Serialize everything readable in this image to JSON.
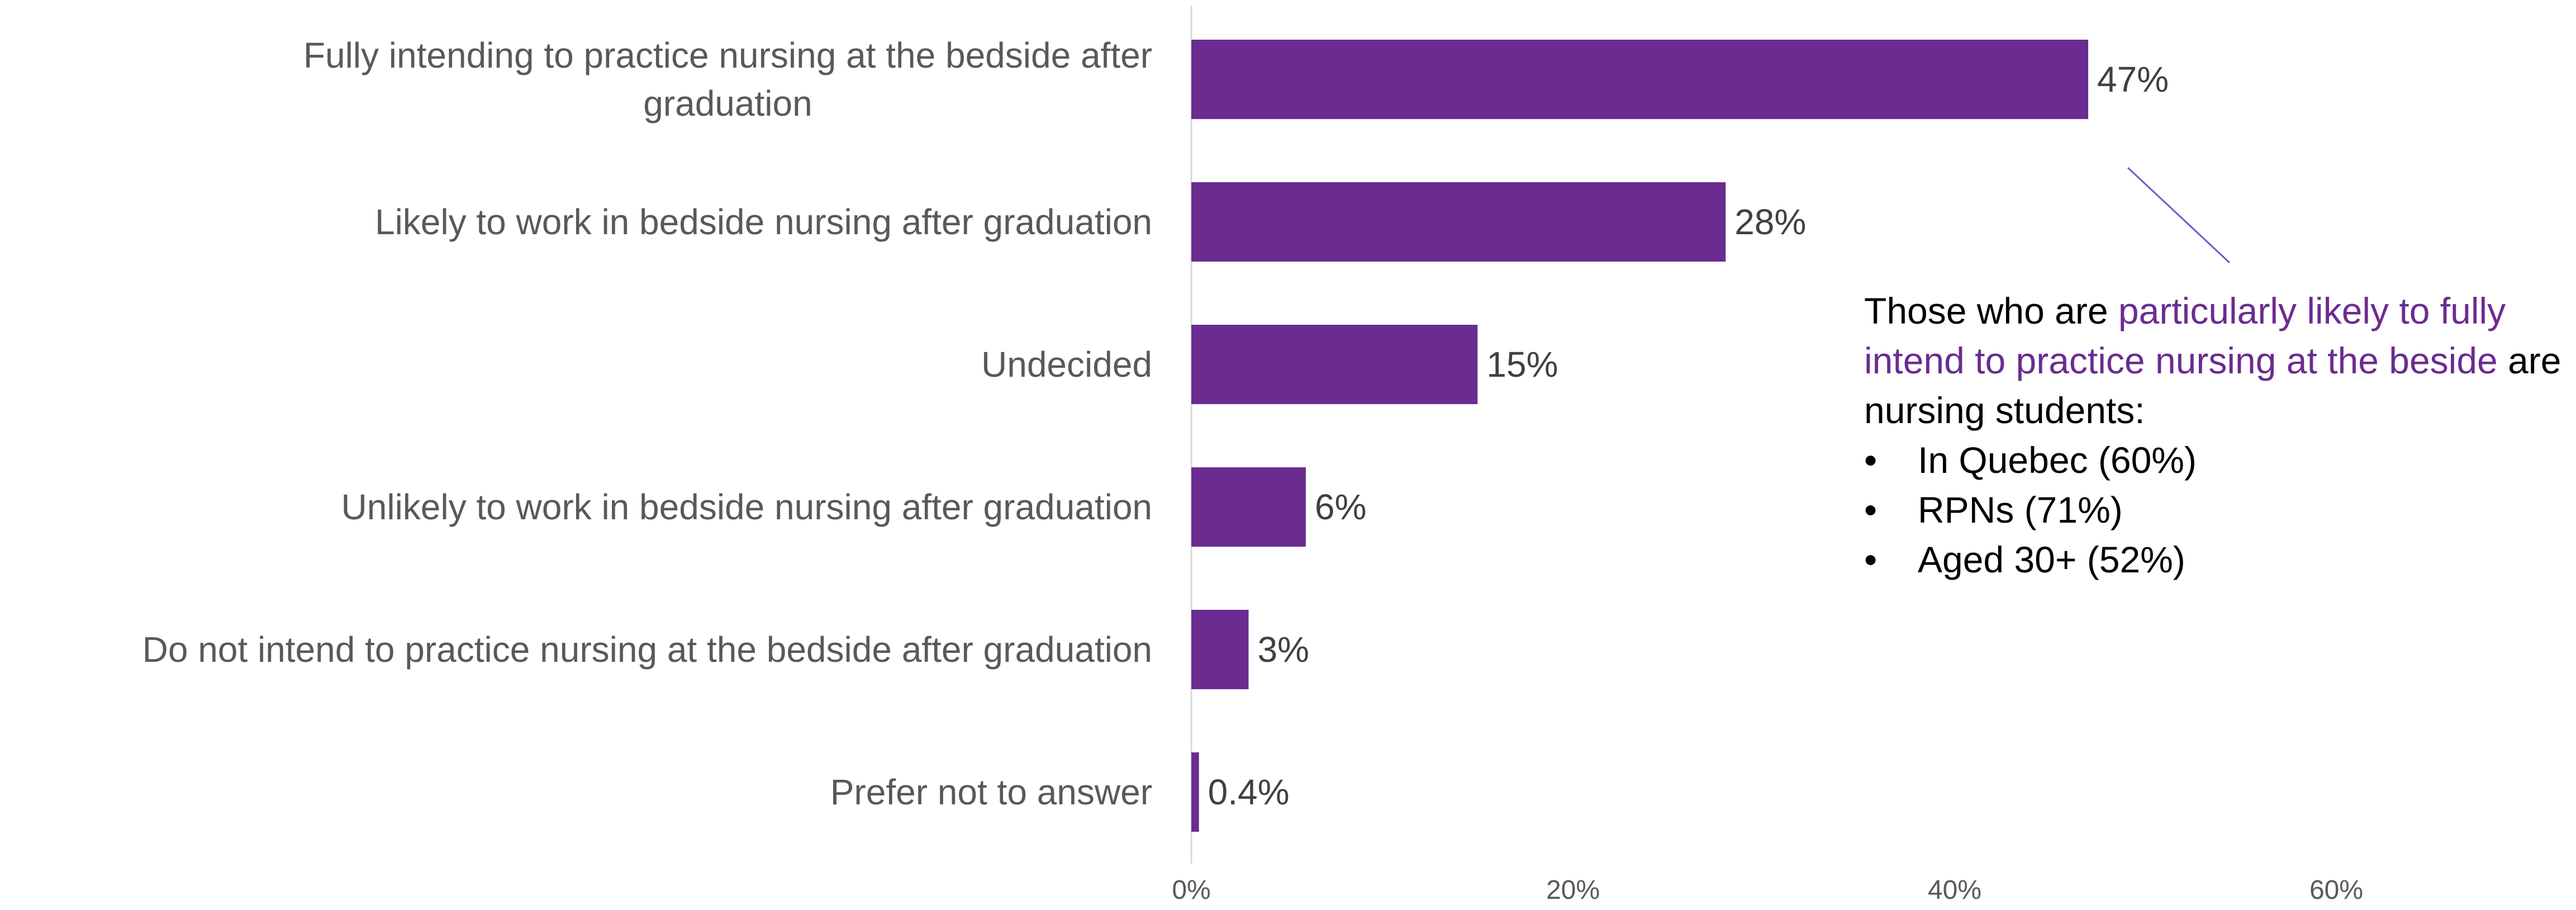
{
  "colors": {
    "bar": "#6a2c91",
    "highlight": "#6a2c91",
    "category_text": "#595959",
    "value_text": "#404040",
    "axis_line": "#d9d9d9",
    "leader_line": "#6a5acd"
  },
  "chart_data": {
    "type": "bar",
    "orientation": "horizontal",
    "title": "",
    "xlabel": "",
    "ylabel": "",
    "xlim": [
      0,
      70
    ],
    "grid": false,
    "categories": [
      "Fully intending to practice nursing at the bedside after graduation",
      "Likely to work in bedside nursing after graduation",
      "Undecided",
      "Unlikely to work in bedside nursing after graduation",
      "Do not intend to practice nursing at the bedside after graduation",
      "Prefer not to answer"
    ],
    "category_lines": [
      [
        "Fully intending to practice nursing at the bedside after",
        "graduation"
      ],
      [
        "Likely to work in bedside nursing after graduation"
      ],
      [
        "Undecided"
      ],
      [
        "Unlikely to work in bedside nursing after graduation"
      ],
      [
        "Do not intend to practice nursing at the bedside after graduation"
      ],
      [
        "Prefer not to answer"
      ]
    ],
    "values": [
      47,
      28,
      15,
      6,
      3,
      0.4
    ],
    "data_labels": [
      "47%",
      "28%",
      "15%",
      "6%",
      "3%",
      "0.4%"
    ],
    "x_ticks": [
      0,
      20,
      40,
      60
    ],
    "x_tick_labels": [
      "0%",
      "20%",
      "40%",
      "60%"
    ]
  },
  "annotation": {
    "lead": "Those who are ",
    "highlight": "particularly likely to fully intend to practice nursing at the beside",
    "tail": " are nursing students:",
    "bullet_symbol": "•",
    "bullets": [
      "In Quebec (60%)",
      "RPNs (71%)",
      "Aged 30+ (52%)"
    ]
  }
}
